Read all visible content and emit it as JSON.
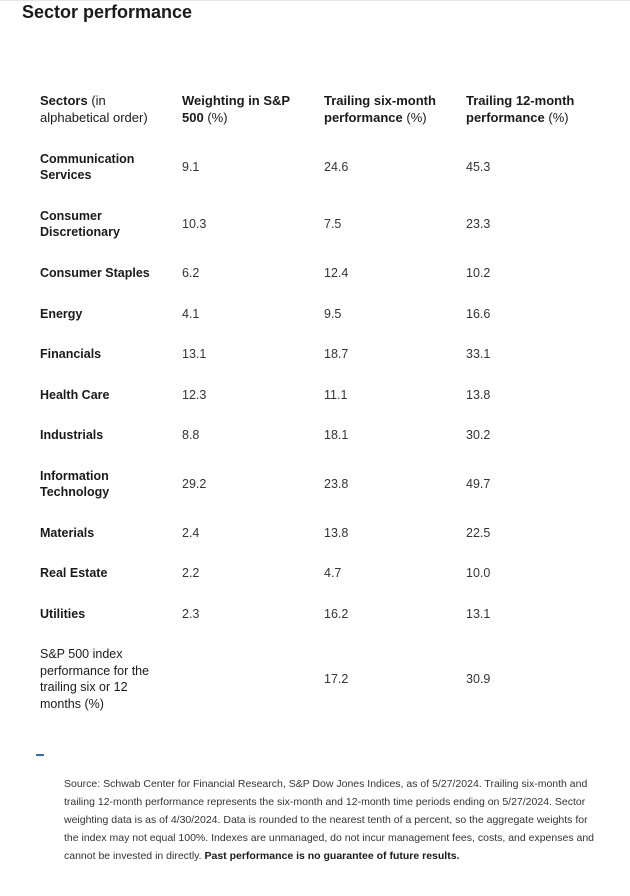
{
  "title": "Sector performance",
  "table": {
    "headers": [
      {
        "bold": "Sectors",
        "light": " (in alphabetical order)"
      },
      {
        "bold": "Weighting in S&P 500",
        "light": " (%)"
      },
      {
        "bold": "Trailing six-month performance",
        "light": " (%)"
      },
      {
        "bold": "Trailing 12-month performance",
        "light": " (%)"
      }
    ],
    "rows": [
      {
        "sector": "Communication Services",
        "weighting": "9.1",
        "six_month": "24.6",
        "twelve_month": "45.3"
      },
      {
        "sector": "Consumer Discretionary",
        "weighting": "10.3",
        "six_month": "7.5",
        "twelve_month": "23.3"
      },
      {
        "sector": "Consumer Staples",
        "weighting": "6.2",
        "six_month": "12.4",
        "twelve_month": "10.2"
      },
      {
        "sector": "Energy",
        "weighting": "4.1",
        "six_month": "9.5",
        "twelve_month": "16.6"
      },
      {
        "sector": "Financials",
        "weighting": "13.1",
        "six_month": "18.7",
        "twelve_month": "33.1"
      },
      {
        "sector": "Health Care",
        "weighting": "12.3",
        "six_month": "11.1",
        "twelve_month": "13.8"
      },
      {
        "sector": "Industrials",
        "weighting": "8.8",
        "six_month": "18.1",
        "twelve_month": "30.2"
      },
      {
        "sector": "Information Technology",
        "weighting": "29.2",
        "six_month": "23.8",
        "twelve_month": "49.7"
      },
      {
        "sector": "Materials",
        "weighting": "2.4",
        "six_month": "13.8",
        "twelve_month": "22.5"
      },
      {
        "sector": "Real Estate",
        "weighting": "2.2",
        "six_month": "4.7",
        "twelve_month": "10.0"
      },
      {
        "sector": "Utilities",
        "weighting": "2.3",
        "six_month": "16.2",
        "twelve_month": "13.1"
      },
      {
        "sector": "S&P 500 index performance for the trailing six or 12 months (%)",
        "weighting": "",
        "six_month": "17.2",
        "twelve_month": "30.9"
      }
    ]
  },
  "source_note": "Source: Schwab Center for Financial Research, S&P Dow Jones Indices, as of 5/27/2024. Trailing six-month and trailing 12-month performance represents the six-month and 12-month time periods ending on 5/27/2024. Sector weighting data is as of 4/30/2024. Data is rounded to the nearest tenth of a percent, so the aggregate weights for the index may not equal 100%. Indexes are unmanaged, do not incur management fees, costs, and expenses and cannot be invested in directly.",
  "disclaimer": " Past performance is no guarantee of future results."
}
